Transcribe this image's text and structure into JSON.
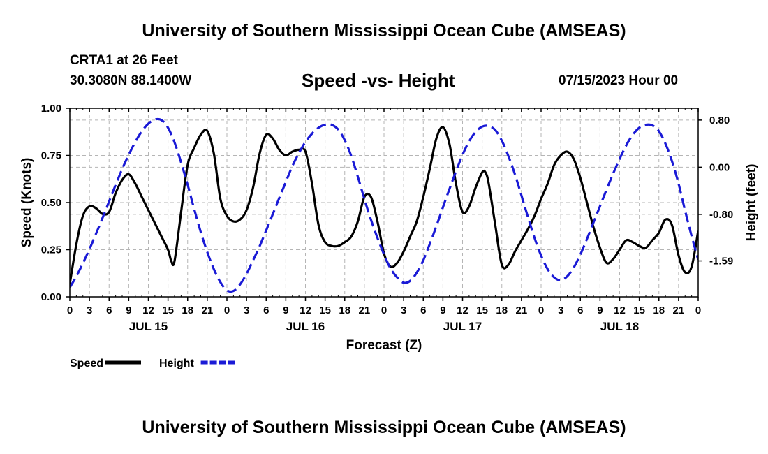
{
  "header": {
    "title": "University of Southern Mississippi Ocean Cube (AMSEAS)",
    "station": "CRTA1 at 26 Feet",
    "coords": "30.3080N  88.1400W",
    "subtitle": "Speed -vs- Height",
    "date": "07/15/2023 Hour 00"
  },
  "footer": {
    "title": "University of Southern Mississippi Ocean Cube (AMSEAS)"
  },
  "chart_data": {
    "type": "line",
    "xlabel": "Forecast (Z)",
    "ylabel": "Speed (Knots)",
    "y2label": "Height (feet)",
    "xlim": [
      0,
      96
    ],
    "ylim": [
      0,
      1
    ],
    "y2lim": [
      -2.2,
      1.0
    ],
    "x_ticks": [
      0,
      3,
      6,
      9,
      12,
      15,
      18,
      21,
      24,
      27,
      30,
      33,
      36,
      39,
      42,
      45,
      48,
      51,
      54,
      57,
      60,
      63,
      66,
      69,
      72,
      75,
      78,
      81,
      84,
      87,
      90,
      93,
      96
    ],
    "x_tick_labels": [
      "0",
      "3",
      "6",
      "9",
      "12",
      "15",
      "18",
      "21",
      "0",
      "3",
      "6",
      "9",
      "12",
      "15",
      "18",
      "21",
      "0",
      "3",
      "6",
      "9",
      "12",
      "15",
      "18",
      "21",
      "0",
      "3",
      "6",
      "9",
      "12",
      "15",
      "18",
      "21",
      "0"
    ],
    "day_labels": [
      {
        "x": 12,
        "label": "JUL 15"
      },
      {
        "x": 36,
        "label": "JUL 16"
      },
      {
        "x": 60,
        "label": "JUL 17"
      },
      {
        "x": 84,
        "label": "JUL 18"
      }
    ],
    "y_ticks": [
      0,
      0.25,
      0.5,
      0.75,
      1.0
    ],
    "y_tick_labels": [
      "0.00",
      "0.25",
      "0.50",
      "0.75",
      "1.00"
    ],
    "y2_ticks": [
      0.8,
      0.0,
      -0.8,
      -1.59
    ],
    "y2_tick_labels": [
      "0.80",
      "0.00",
      "-0.80",
      "-1.59"
    ],
    "grid": true,
    "legend": [
      {
        "label": "Speed",
        "color": "#000000",
        "dash": "solid"
      },
      {
        "label": "Height",
        "color": "#1a1ad6",
        "dash": "dashed"
      }
    ],
    "series": [
      {
        "name": "Speed",
        "axis": "left",
        "color": "#000000",
        "x": [
          0,
          1,
          2,
          3,
          4,
          5,
          6,
          7,
          8,
          9,
          10,
          11,
          12,
          13,
          14,
          15,
          15.5,
          16,
          17,
          18,
          19,
          20,
          21,
          22,
          23,
          24,
          25,
          26,
          27,
          28,
          29,
          30,
          31,
          32,
          33,
          34,
          35,
          36,
          37,
          38,
          39,
          40,
          41,
          42,
          43,
          44,
          45,
          46,
          47,
          48,
          49,
          50,
          51,
          52,
          53,
          54,
          55,
          56,
          57,
          58,
          59,
          60,
          61,
          62,
          63,
          63.5,
          64,
          65,
          66,
          67,
          68,
          69,
          70,
          71,
          72,
          73,
          74,
          75,
          76,
          77,
          78,
          79,
          80,
          81,
          82,
          83,
          84,
          85,
          86,
          87,
          88,
          89,
          90,
          91,
          92,
          93,
          94,
          95,
          96
        ],
        "values": [
          0.07,
          0.28,
          0.43,
          0.48,
          0.47,
          0.44,
          0.45,
          0.55,
          0.62,
          0.65,
          0.6,
          0.53,
          0.46,
          0.39,
          0.32,
          0.25,
          0.19,
          0.19,
          0.45,
          0.7,
          0.79,
          0.86,
          0.88,
          0.76,
          0.52,
          0.43,
          0.4,
          0.41,
          0.46,
          0.58,
          0.76,
          0.86,
          0.84,
          0.78,
          0.75,
          0.77,
          0.78,
          0.77,
          0.6,
          0.38,
          0.29,
          0.27,
          0.27,
          0.29,
          0.32,
          0.4,
          0.53,
          0.53,
          0.4,
          0.23,
          0.16,
          0.18,
          0.24,
          0.32,
          0.4,
          0.53,
          0.68,
          0.84,
          0.9,
          0.81,
          0.6,
          0.45,
          0.48,
          0.58,
          0.66,
          0.66,
          0.6,
          0.38,
          0.17,
          0.17,
          0.24,
          0.3,
          0.36,
          0.43,
          0.52,
          0.6,
          0.7,
          0.75,
          0.77,
          0.73,
          0.63,
          0.5,
          0.37,
          0.26,
          0.18,
          0.2,
          0.25,
          0.3,
          0.29,
          0.27,
          0.26,
          0.3,
          0.34,
          0.41,
          0.38,
          0.22,
          0.13,
          0.16,
          0.35
        ]
      },
      {
        "name": "Height",
        "axis": "right",
        "color": "#1a1ad6",
        "x": [
          0,
          1,
          2,
          3,
          4,
          5,
          6,
          7,
          8,
          9,
          10,
          11,
          12,
          13,
          14,
          15,
          16,
          17,
          18,
          19,
          20,
          21,
          22,
          23,
          24,
          25,
          26,
          27,
          28,
          29,
          30,
          31,
          32,
          33,
          34,
          35,
          36,
          37,
          38,
          39,
          40,
          41,
          42,
          43,
          44,
          45,
          46,
          47,
          48,
          49,
          50,
          51,
          52,
          53,
          54,
          55,
          56,
          57,
          58,
          59,
          60,
          61,
          62,
          63,
          64,
          65,
          66,
          67,
          68,
          69,
          70,
          71,
          72,
          73,
          74,
          75,
          76,
          77,
          78,
          79,
          80,
          81,
          82,
          83,
          84,
          85,
          86,
          87,
          88,
          89,
          90,
          91,
          92,
          93,
          94,
          95,
          96
        ],
        "values": [
          -2.04,
          -1.85,
          -1.63,
          -1.39,
          -1.13,
          -0.86,
          -0.58,
          -0.3,
          -0.03,
          0.21,
          0.43,
          0.61,
          0.74,
          0.81,
          0.8,
          0.67,
          0.42,
          0.08,
          -0.3,
          -0.71,
          -1.1,
          -1.44,
          -1.73,
          -1.95,
          -2.09,
          -2.1,
          -1.99,
          -1.81,
          -1.58,
          -1.34,
          -1.07,
          -0.8,
          -0.52,
          -0.25,
          0.02,
          0.24,
          0.43,
          0.57,
          0.67,
          0.72,
          0.72,
          0.64,
          0.46,
          0.19,
          -0.16,
          -0.54,
          -0.89,
          -1.2,
          -1.48,
          -1.72,
          -1.87,
          -1.96,
          -1.93,
          -1.79,
          -1.58,
          -1.3,
          -1.0,
          -0.68,
          -0.37,
          -0.07,
          0.21,
          0.44,
          0.6,
          0.69,
          0.7,
          0.63,
          0.45,
          0.19,
          -0.12,
          -0.48,
          -0.85,
          -1.2,
          -1.5,
          -1.73,
          -1.87,
          -1.92,
          -1.85,
          -1.7,
          -1.48,
          -1.22,
          -0.94,
          -0.66,
          -0.38,
          -0.11,
          0.14,
          0.37,
          0.55,
          0.67,
          0.72,
          0.71,
          0.61,
          0.4,
          0.1,
          -0.28,
          -0.74,
          -1.17,
          -1.57
        ]
      }
    ]
  }
}
